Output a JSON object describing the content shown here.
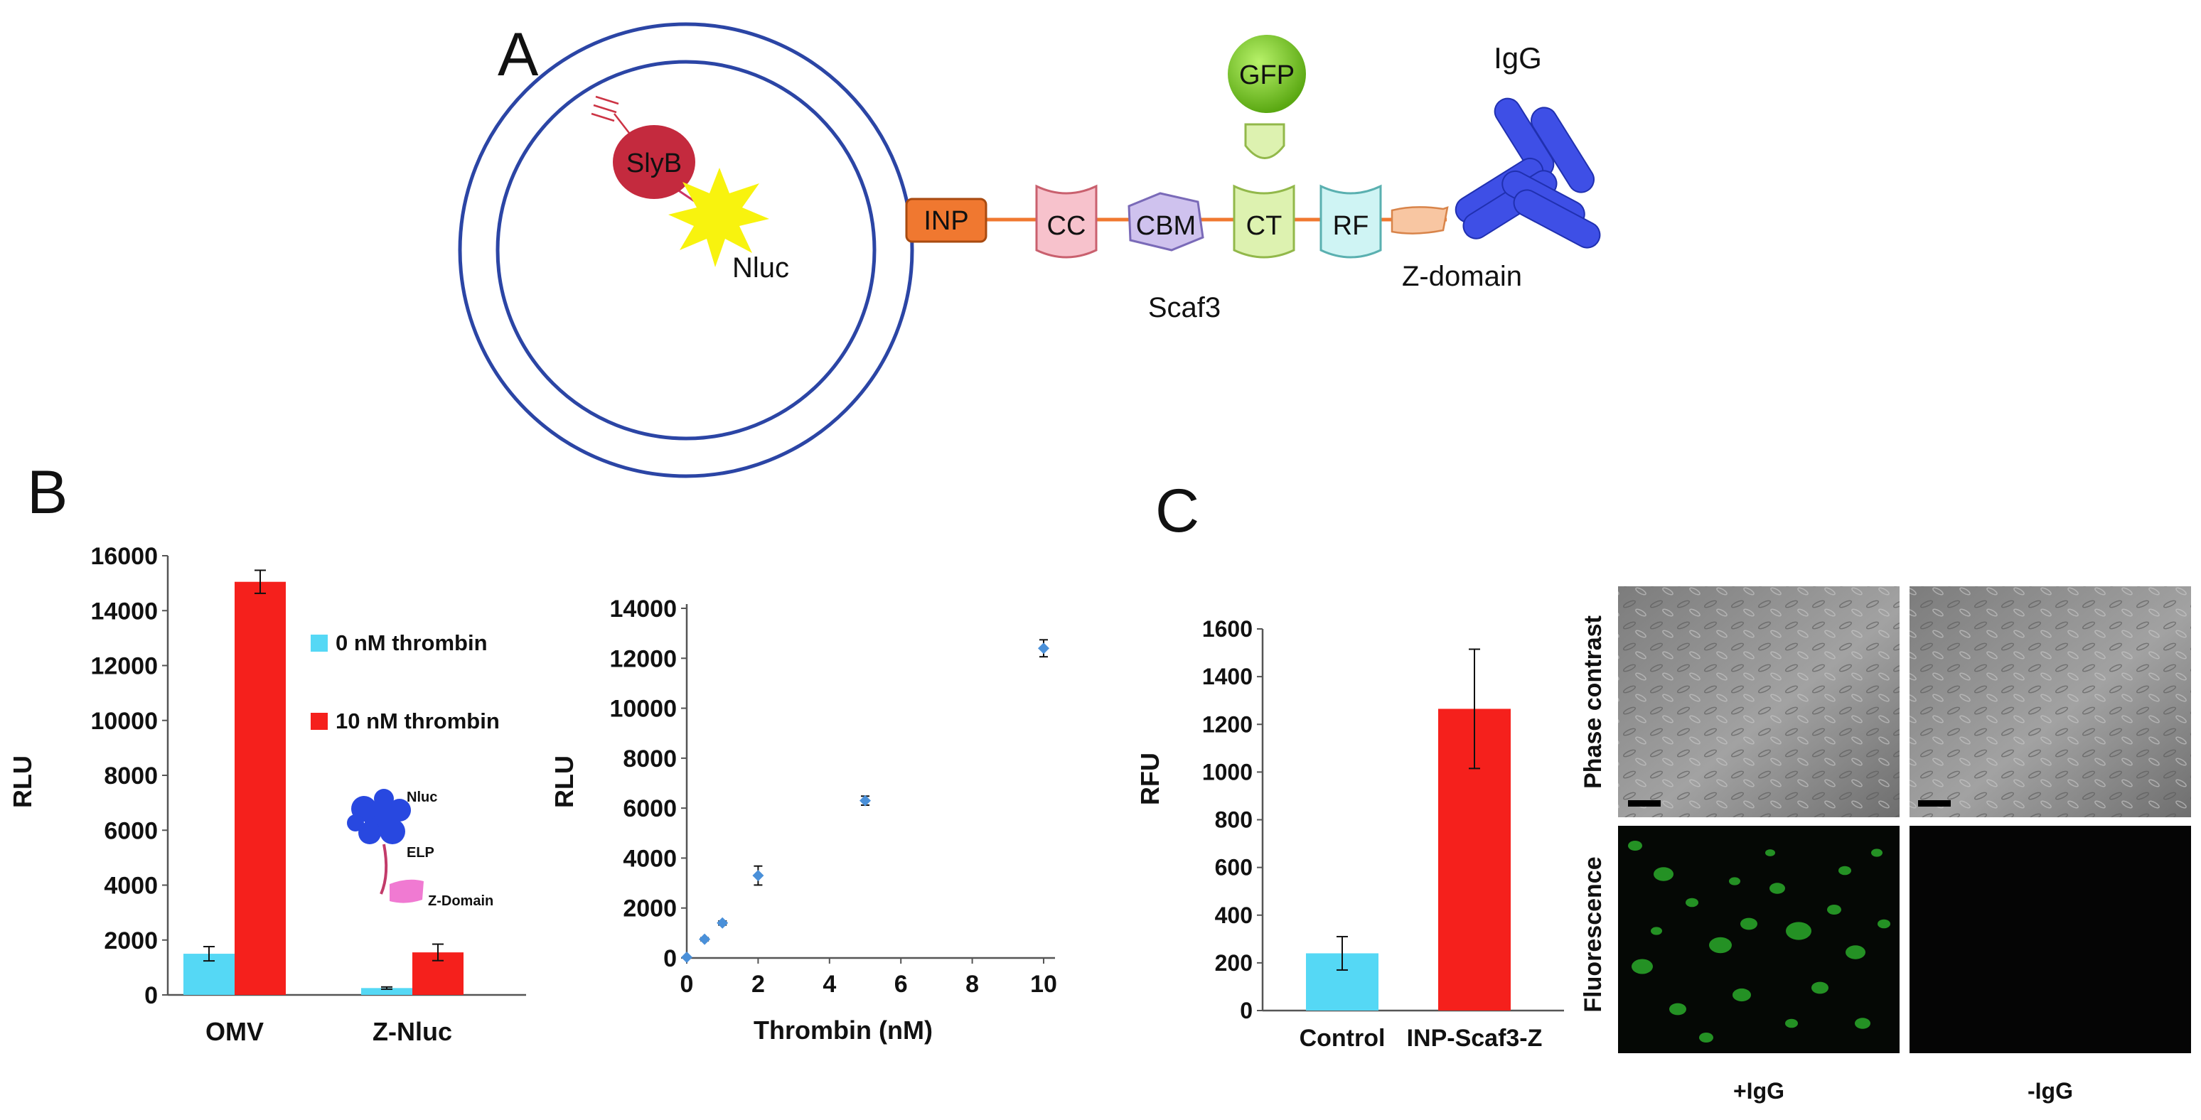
{
  "panels": {
    "a": "A",
    "b": "B",
    "c": "C"
  },
  "schematic": {
    "slyb": "SlyB",
    "nluc": "Nluc",
    "inp": "INP",
    "cc": "CC",
    "cbm": "CBM",
    "ct": "CT",
    "rf": "RF",
    "gfp": "GFP",
    "igg": "IgG",
    "zdomain": "Z-domain",
    "scaf3": "Scaf3"
  },
  "inset": {
    "nluc": "Nluc",
    "elp": "ELP",
    "zdomain": "Z-Domain"
  },
  "micrographs": {
    "row_labels": [
      "Phase contrast",
      "Fluorescence"
    ],
    "col_labels": [
      "+IgG",
      "-IgG"
    ]
  },
  "colors": {
    "cyan": "#55d8f5",
    "red": "#f5201c",
    "blue": "#2f3fbf",
    "orange": "#f07830",
    "point": "#4a90d9"
  },
  "chart_data": [
    {
      "id": "b1",
      "type": "bar",
      "categories": [
        "OMV",
        "Z-Nluc"
      ],
      "series": [
        {
          "name": "0 nM thrombin",
          "color": "#55d8f5",
          "values": [
            1500,
            250
          ],
          "errors": [
            260,
            40
          ]
        },
        {
          "name": "10 nM thrombin",
          "color": "#f5201c",
          "values": [
            15050,
            1550
          ],
          "errors": [
            420,
            300
          ]
        }
      ],
      "ylabel": "RLU",
      "ylim": [
        0,
        16000
      ],
      "yticks": [
        "0",
        "2000",
        "4000",
        "6000",
        "8000",
        "10000",
        "12000",
        "14000",
        "16000"
      ],
      "legend": "right"
    },
    {
      "id": "b2",
      "type": "scatter",
      "xlabel": "Thrombin (nM)",
      "ylabel": "RLU",
      "xlim": [
        0,
        10
      ],
      "ylim": [
        0,
        14000
      ],
      "xticks": [
        "0",
        "2",
        "4",
        "6",
        "8",
        "10"
      ],
      "yticks": [
        "0",
        "2000",
        "4000",
        "6000",
        "8000",
        "10000",
        "12000",
        "14000"
      ],
      "x": [
        0,
        0.5,
        1,
        2,
        5,
        10
      ],
      "y": [
        30,
        750,
        1400,
        3300,
        6300,
        12400
      ],
      "errors": [
        20,
        60,
        80,
        380,
        180,
        340
      ]
    },
    {
      "id": "c1",
      "type": "bar",
      "categories": [
        "Control",
        "INP-Scaf3-Z"
      ],
      "values": [
        240,
        1265
      ],
      "errors": [
        70,
        250
      ],
      "colors": [
        "#55d8f5",
        "#f5201c"
      ],
      "ylabel": "RFU",
      "ylim": [
        0,
        1600
      ],
      "yticks": [
        "0",
        "200",
        "400",
        "600",
        "800",
        "1000",
        "1200",
        "1400",
        "1600"
      ]
    }
  ]
}
